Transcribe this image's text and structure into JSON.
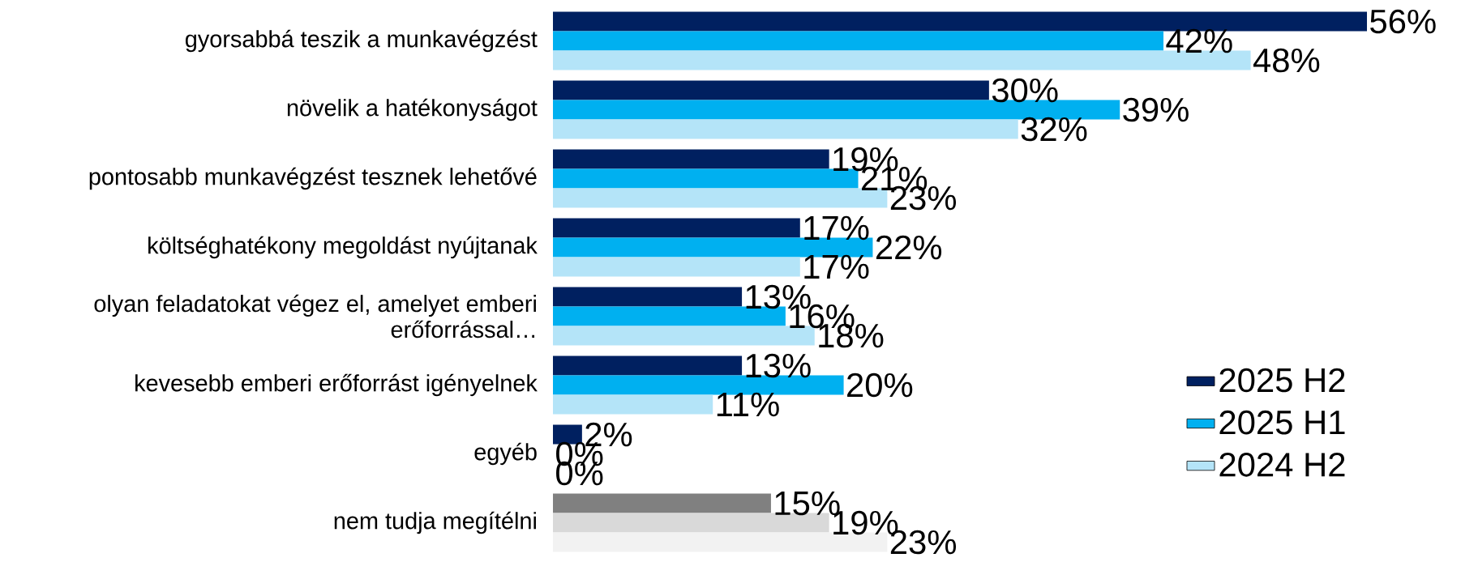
{
  "chart_data": {
    "type": "bar",
    "orientation": "horizontal",
    "legend": "bottom right",
    "categories": [
      "gyorsabbá teszik a munkavégzést",
      "növelik a hatékonyságot",
      "pontosabb munkavégzést tesznek lehetővé",
      "költséghatékony megoldást nyújtanak",
      "olyan feladatokat végez el, amelyet emberi erőforrással…",
      "kevesebb emberi erőforrást igényelnek",
      "egyéb",
      "nem tudja megítélni"
    ],
    "series": [
      {
        "name": "2025 H2",
        "color": "#002060",
        "colors": [
          "#002060",
          "#002060",
          "#002060",
          "#002060",
          "#002060",
          "#002060",
          "#002060",
          "#808080"
        ],
        "values": [
          56,
          30,
          19,
          17,
          13,
          13,
          2,
          15
        ],
        "value_labels": [
          "56%",
          "30%",
          "19%",
          "17%",
          "13%",
          "13%",
          "2%",
          "15%"
        ]
      },
      {
        "name": "2025 H1",
        "color": "#00b0f0",
        "colors": [
          "#00b0f0",
          "#00b0f0",
          "#00b0f0",
          "#00b0f0",
          "#00b0f0",
          "#00b0f0",
          "#00b0f0",
          "#d9d9d9"
        ],
        "values": [
          42,
          39,
          21,
          22,
          16,
          20,
          0,
          19
        ],
        "value_labels": [
          "42%",
          "39%",
          "21%",
          "22%",
          "16%",
          "20%",
          "0%",
          "19%"
        ]
      },
      {
        "name": "2024 H2",
        "color": "#b4e4f8",
        "colors": [
          "#b4e4f8",
          "#b4e4f8",
          "#b4e4f8",
          "#b4e4f8",
          "#b4e4f8",
          "#b4e4f8",
          "#b4e4f8",
          "#f2f2f2"
        ],
        "values": [
          48,
          32,
          23,
          17,
          18,
          11,
          0,
          23
        ],
        "value_labels": [
          "48%",
          "32%",
          "23%",
          "17%",
          "18%",
          "11%",
          "0%",
          "23%"
        ]
      }
    ]
  }
}
